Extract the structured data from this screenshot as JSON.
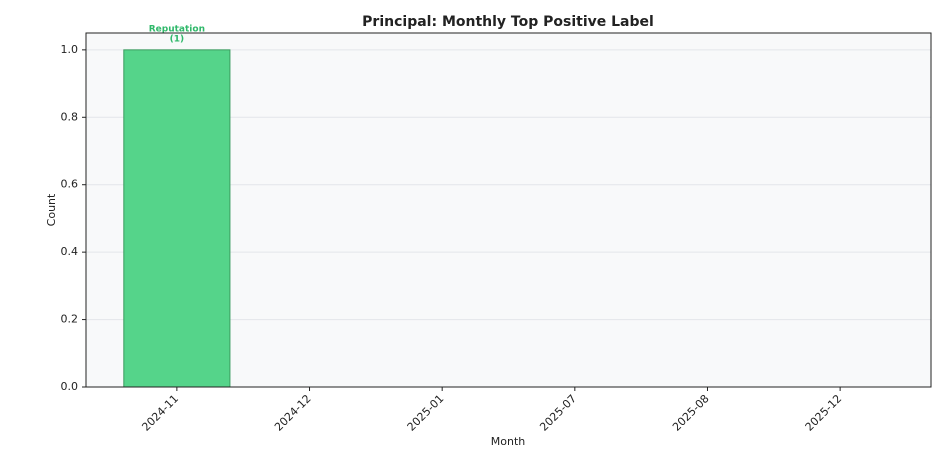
{
  "chart_data": {
    "type": "bar",
    "title": "Principal: Monthly Top Positive Label",
    "x_label": "Month",
    "y_label": "Count",
    "categories": [
      "2024-11",
      "2024-12",
      "2025-01",
      "2025-07",
      "2025-08",
      "2025-12"
    ],
    "values": [
      1,
      0,
      0,
      0,
      0,
      0
    ],
    "top_labels": [
      "Reputation",
      null,
      null,
      null,
      null,
      null
    ],
    "value_labels": [
      "(1)",
      null,
      null,
      null,
      null,
      null
    ],
    "color": "#55d48a",
    "edge_color": "#3a9c5f",
    "label_color": "#2fb86a",
    "ylim": [
      0,
      1.05
    ],
    "yticks": [
      {
        "value": 0,
        "label": "0.0"
      },
      0.2,
      0.4,
      0.6,
      0.8,
      {
        "value": 1,
        "label": "1.0"
      }
    ],
    "grid": true
  }
}
